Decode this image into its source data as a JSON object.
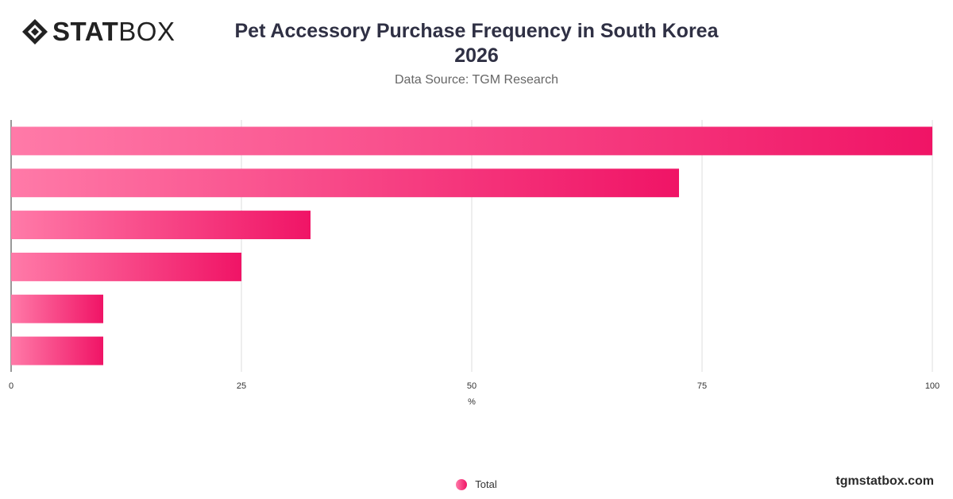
{
  "brand": {
    "logo_bold": "STAT",
    "logo_light": "BOX",
    "footer": "tgmstatbox.com"
  },
  "header": {
    "title_line1": "Pet Accessory Purchase Frequency in South Korea",
    "title_line2": "2026",
    "subtitle": "Data Source: TGM Research"
  },
  "legend": {
    "total_label": "Total"
  },
  "colors": {
    "bar_start": "#ff7aa8",
    "bar_end": "#f01466",
    "grid": "#dddddd",
    "axis_text": "#333333"
  },
  "chart_data": {
    "type": "bar",
    "orientation": "horizontal",
    "title": "Pet Accessory Purchase Frequency in South Korea 2026",
    "subtitle": "Data Source: TGM Research",
    "xlabel": "%",
    "ylabel": "",
    "xlim": [
      0,
      100
    ],
    "xticks": [
      0,
      25,
      50,
      75,
      100
    ],
    "categories": [
      "",
      "",
      "",
      "",
      "",
      ""
    ],
    "series": [
      {
        "name": "Total",
        "values": [
          100,
          72.5,
          32.5,
          25,
          10,
          10
        ]
      }
    ],
    "grid": true,
    "legend_position": "bottom-center"
  }
}
